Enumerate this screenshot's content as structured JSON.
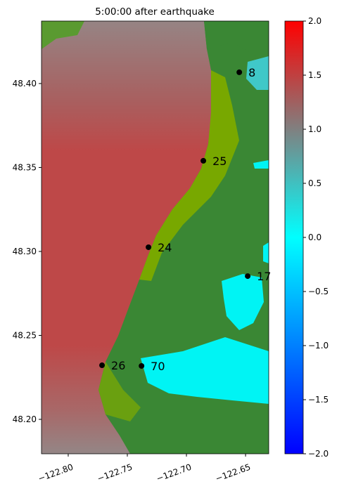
{
  "chart_data": {
    "type": "map",
    "title": "5:00:00 after earthquake",
    "xlim": [
      -122.8226,
      -122.6304
    ],
    "ylim": [
      48.1795,
      48.4372
    ],
    "xticks": [
      {
        "value": -122.8,
        "label": "−122.80"
      },
      {
        "value": -122.75,
        "label": "−122.75"
      },
      {
        "value": -122.7,
        "label": "−122.70"
      },
      {
        "value": -122.65,
        "label": "−122.65"
      }
    ],
    "yticks": [
      {
        "value": 48.2,
        "label": "48.20"
      },
      {
        "value": 48.25,
        "label": "48.25"
      },
      {
        "value": 48.3,
        "label": "48.30"
      },
      {
        "value": 48.35,
        "label": "48.35"
      },
      {
        "value": 48.4,
        "label": "48.40"
      }
    ],
    "gauges": {
      "names": [
        "8",
        "25",
        "24",
        "17",
        "26",
        "70"
      ],
      "x": [
        -122.6553,
        -122.6857,
        -122.7321,
        -122.6482,
        -122.7714,
        -122.738
      ],
      "y": [
        48.4067,
        48.354,
        48.3025,
        48.2853,
        48.2322,
        48.2318
      ],
      "color": "#000000"
    },
    "colorbar": {
      "clim": [
        -2,
        2
      ],
      "ticks": [
        {
          "value": -2,
          "label": "−2.0"
        },
        {
          "value": -1.5,
          "label": "−1.5"
        },
        {
          "value": -1,
          "label": "−1.0"
        },
        {
          "value": -0.5,
          "label": "−0.5"
        },
        {
          "value": 0,
          "label": "0.0"
        },
        {
          "value": 0.5,
          "label": "0.5"
        },
        {
          "value": 1,
          "label": "1.0"
        },
        {
          "value": 1.5,
          "label": "1.5"
        },
        {
          "value": 2,
          "label": "2.0"
        }
      ],
      "colormap": [
        "#0000ff",
        "#0040ff",
        "#0080ff",
        "#00c0ff",
        "#00ffff",
        "#40c0c0",
        "#808080",
        "#c04040",
        "#ff0000"
      ]
    }
  }
}
